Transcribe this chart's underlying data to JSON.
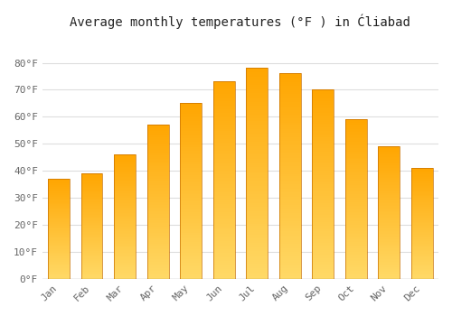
{
  "title": "Average monthly temperatures (°F ) in Ćliabad",
  "months": [
    "Jan",
    "Feb",
    "Mar",
    "Apr",
    "May",
    "Jun",
    "Jul",
    "Aug",
    "Sep",
    "Oct",
    "Nov",
    "Dec"
  ],
  "values": [
    37,
    39,
    46,
    57,
    65,
    73,
    78,
    76,
    70,
    59,
    49,
    41
  ],
  "bar_color_top": "#FFA500",
  "bar_color_bottom": "#FFD966",
  "bar_edge_color": "#C87000",
  "ylim": [
    0,
    90
  ],
  "yticks": [
    0,
    10,
    20,
    30,
    40,
    50,
    60,
    70,
    80
  ],
  "ytick_labels": [
    "0°F",
    "10°F",
    "20°F",
    "30°F",
    "40°F",
    "50°F",
    "60°F",
    "70°F",
    "80°F"
  ],
  "background_color": "#FFFFFF",
  "grid_color": "#DDDDDD",
  "title_fontsize": 10,
  "tick_fontsize": 8,
  "title_color": "#222222",
  "tick_color": "#666666"
}
